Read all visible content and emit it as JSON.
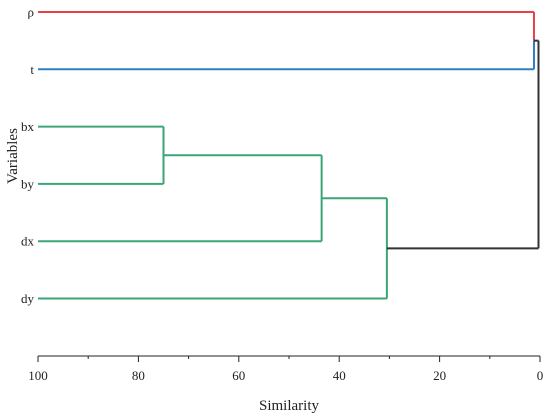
{
  "chart_data": {
    "type": "dendrogram",
    "title": "",
    "xlabel": "Similarity",
    "ylabel": "Variables",
    "xlim": [
      100,
      0
    ],
    "x_ticks": [
      "100",
      "80",
      "60",
      "40",
      "20",
      "0"
    ],
    "x_tick_values": [
      100,
      80,
      60,
      40,
      20,
      0
    ],
    "leaves": [
      {
        "id": "rho",
        "label": "ρ",
        "order": 0
      },
      {
        "id": "t",
        "label": "t",
        "order": 1
      },
      {
        "id": "bx",
        "label": "bx",
        "order": 2
      },
      {
        "id": "by",
        "label": "by",
        "order": 3
      },
      {
        "id": "dx",
        "label": "dx",
        "order": 4
      },
      {
        "id": "dy",
        "label": "dy",
        "order": 5
      }
    ],
    "merges": [
      {
        "id": "m1",
        "left": "bx",
        "right": "by",
        "similarity": 75.0,
        "color": "#3aa676"
      },
      {
        "id": "m2",
        "left": "m1",
        "right": "dx",
        "similarity": 43.5,
        "color": "#3aa676"
      },
      {
        "id": "m3",
        "left": "m2",
        "right": "dy",
        "similarity": 30.5,
        "color": "#3aa676"
      },
      {
        "id": "m4",
        "left": "rho",
        "right": "t",
        "similarity": 1.2,
        "color_left": "#e8414a",
        "color_right": "#2f7fc1",
        "color": "#2f7fc1"
      },
      {
        "id": "m5",
        "left": "m4",
        "right": "m3",
        "similarity": 0.3,
        "color": "#333333"
      }
    ]
  }
}
